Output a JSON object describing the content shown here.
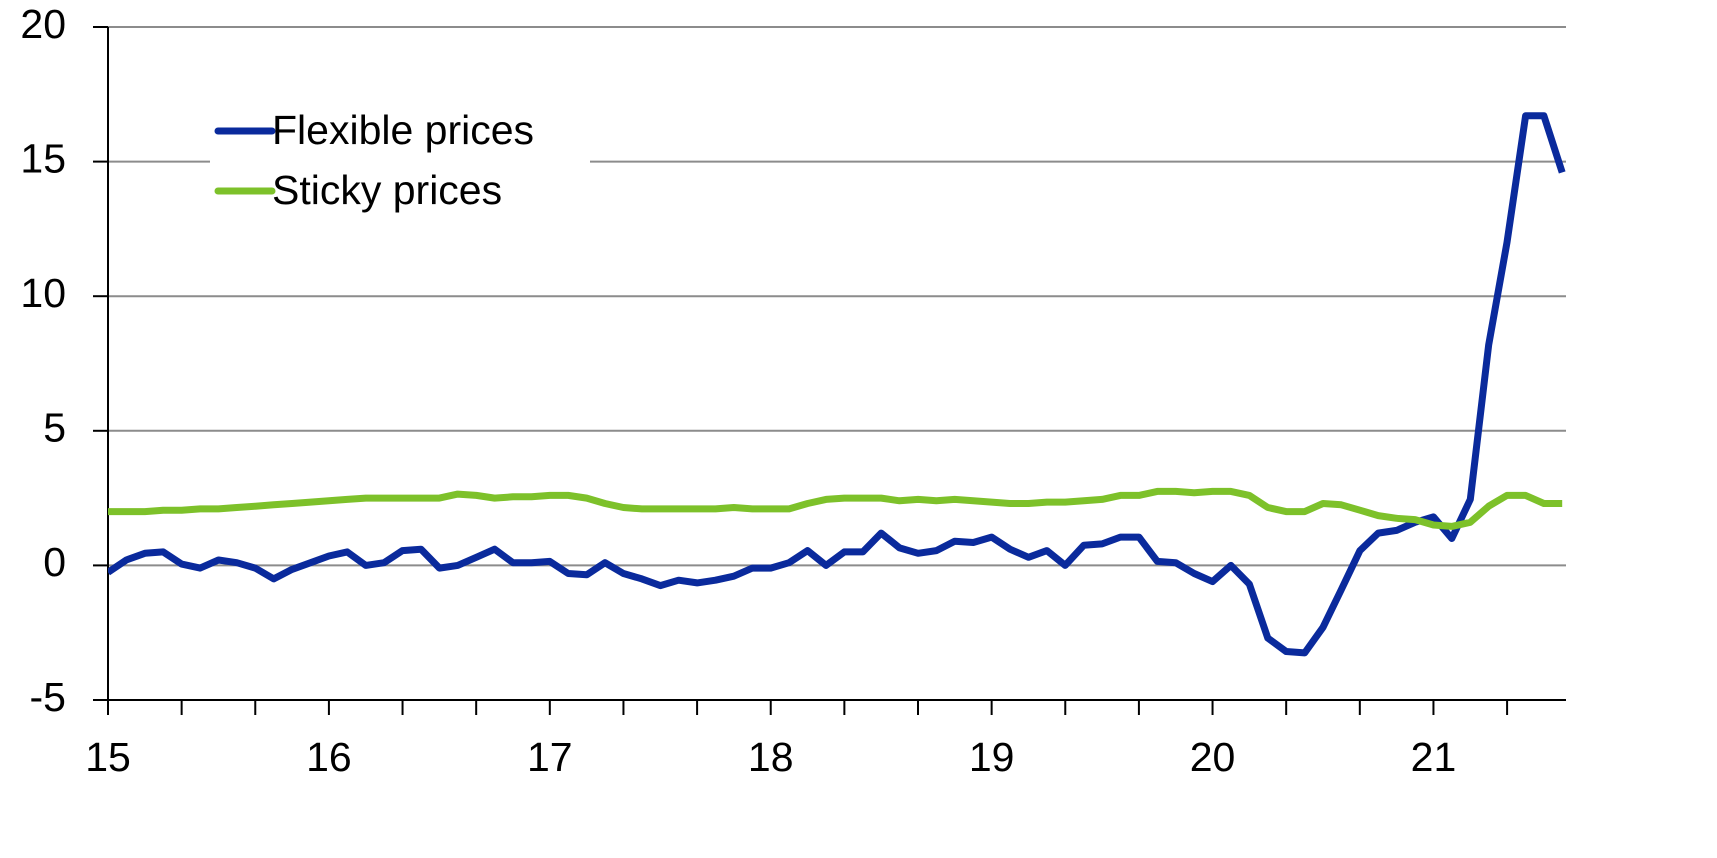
{
  "chart_data": {
    "type": "line",
    "x": [
      15,
      15.083,
      15.167,
      15.25,
      15.333,
      15.417,
      15.5,
      15.583,
      15.667,
      15.75,
      15.833,
      15.917,
      16,
      16.083,
      16.167,
      16.25,
      16.333,
      16.417,
      16.5,
      16.583,
      16.667,
      16.75,
      16.833,
      16.917,
      17,
      17.083,
      17.167,
      17.25,
      17.333,
      17.417,
      17.5,
      17.583,
      17.667,
      17.75,
      17.833,
      17.917,
      18,
      18.083,
      18.167,
      18.25,
      18.333,
      18.417,
      18.5,
      18.583,
      18.667,
      18.75,
      18.833,
      18.917,
      19,
      19.083,
      19.167,
      19.25,
      19.333,
      19.417,
      19.5,
      19.583,
      19.667,
      19.75,
      19.833,
      19.917,
      20,
      20.083,
      20.167,
      20.25,
      20.333,
      20.417,
      20.5,
      20.583,
      20.667,
      20.75,
      20.833,
      20.917,
      21,
      21.083,
      21.167,
      21.25,
      21.333,
      21.417,
      21.5,
      21.583
    ],
    "series": [
      {
        "name": "Flexible prices",
        "color": "#0a2a9c",
        "values": [
          -0.26,
          0.2,
          0.45,
          0.5,
          0.05,
          -0.1,
          0.2,
          0.1,
          -0.1,
          -0.5,
          -0.15,
          0.1,
          0.35,
          0.5,
          0.0,
          0.1,
          0.55,
          0.6,
          -0.1,
          0.0,
          0.3,
          0.6,
          0.1,
          0.1,
          0.15,
          -0.3,
          -0.35,
          0.1,
          -0.3,
          -0.5,
          -0.75,
          -0.55,
          -0.65,
          -0.55,
          -0.4,
          -0.1,
          -0.1,
          0.1,
          0.55,
          0.0,
          0.5,
          0.5,
          1.2,
          0.65,
          0.45,
          0.55,
          0.9,
          0.85,
          1.05,
          0.6,
          0.3,
          0.55,
          0.0,
          0.75,
          0.8,
          1.05,
          1.05,
          0.15,
          0.1,
          -0.3,
          -0.6,
          0.0,
          -0.7,
          -2.7,
          -3.2,
          -3.25,
          -2.3,
          -0.9,
          0.55,
          1.2,
          1.3,
          1.6,
          1.8,
          1.0,
          2.45,
          8.2,
          12.0,
          16.7,
          16.7,
          14.6
        ]
      },
      {
        "name": "Sticky prices",
        "color": "#7dc12a",
        "values": [
          2.0,
          2.0,
          2.0,
          2.05,
          2.05,
          2.1,
          2.1,
          2.15,
          2.2,
          2.25,
          2.3,
          2.35,
          2.4,
          2.45,
          2.5,
          2.5,
          2.5,
          2.5,
          2.5,
          2.65,
          2.6,
          2.5,
          2.55,
          2.55,
          2.6,
          2.6,
          2.5,
          2.3,
          2.15,
          2.1,
          2.1,
          2.1,
          2.1,
          2.1,
          2.15,
          2.1,
          2.1,
          2.1,
          2.3,
          2.45,
          2.5,
          2.5,
          2.5,
          2.4,
          2.45,
          2.4,
          2.45,
          2.4,
          2.35,
          2.3,
          2.3,
          2.35,
          2.35,
          2.4,
          2.45,
          2.6,
          2.6,
          2.75,
          2.75,
          2.7,
          2.75,
          2.75,
          2.6,
          2.15,
          2.0,
          2.0,
          2.3,
          2.25,
          2.05,
          1.85,
          1.75,
          1.7,
          1.5,
          1.45,
          1.6,
          2.2,
          2.6,
          2.6,
          2.3,
          2.3
        ]
      }
    ],
    "xlim": [
      15,
      21.6
    ],
    "xticks": [
      15,
      16,
      17,
      18,
      19,
      20,
      21
    ],
    "ylim": [
      -5,
      20
    ],
    "yticks": [
      -5,
      0,
      5,
      10,
      15,
      20
    ],
    "grid": true,
    "legend": "upper left"
  }
}
